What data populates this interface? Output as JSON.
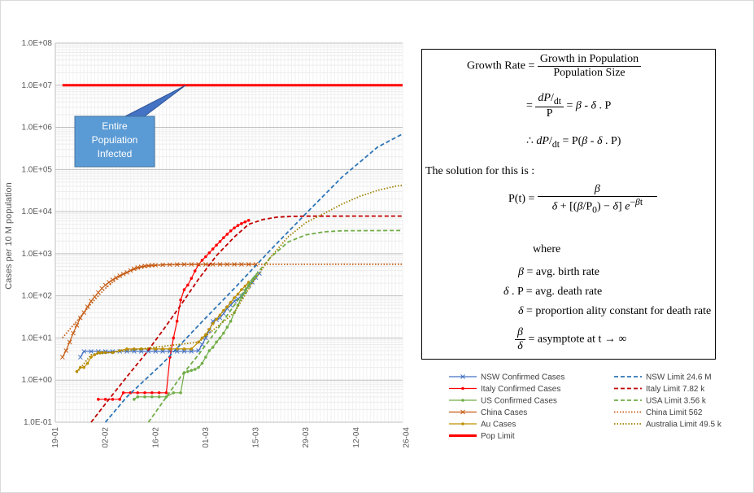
{
  "chart_data": {
    "type": "line",
    "ylabel": "Cases per 10 M population",
    "yscale": "log",
    "ylim": [
      0.1,
      100000000
    ],
    "ytick_labels": [
      "1.0E-01",
      "1.0E+00",
      "1.0E+01",
      "1.0E+02",
      "1.0E+03",
      "1.0E+04",
      "1.0E+05",
      "1.0E+06",
      "1.0E+07",
      "1.0E+08"
    ],
    "xlim_days": [
      0,
      97
    ],
    "xtick_labels": [
      "19-01",
      "02-02",
      "16-02",
      "01-03",
      "15-03",
      "29-03",
      "12-04",
      "26-04"
    ],
    "grid": true,
    "annotation": {
      "text_lines": [
        "Entire",
        "Population",
        "Infected"
      ]
    },
    "series": [
      {
        "name": "NSW Confirmed Cases",
        "color": "#4472c4",
        "style": "marker-x",
        "points": [
          [
            7,
            3.5
          ],
          [
            8,
            4.8
          ],
          [
            10,
            4.8
          ],
          [
            12,
            4.8
          ],
          [
            14,
            4.8
          ],
          [
            16,
            4.8
          ],
          [
            18,
            4.8
          ],
          [
            20,
            4.8
          ],
          [
            22,
            4.8
          ],
          [
            24,
            4.8
          ],
          [
            26,
            4.8
          ],
          [
            28,
            4.8
          ],
          [
            30,
            4.8
          ],
          [
            32,
            4.8
          ],
          [
            34,
            4.8
          ],
          [
            36,
            4.8
          ],
          [
            38,
            4.8
          ],
          [
            40,
            5
          ],
          [
            41,
            7
          ],
          [
            42,
            10
          ],
          [
            43,
            15
          ],
          [
            44,
            25
          ],
          [
            45,
            27
          ],
          [
            46,
            30
          ],
          [
            47,
            38
          ],
          [
            48,
            50
          ],
          [
            49,
            60
          ],
          [
            50,
            75
          ],
          [
            51,
            85
          ],
          [
            52,
            100
          ],
          [
            53,
            130
          ],
          [
            54,
            170
          ],
          [
            55,
            210
          ],
          [
            56,
            270
          ],
          [
            57,
            340
          ]
        ]
      },
      {
        "name": "Italy Confirmed Cases",
        "color": "#ff0000",
        "style": "marker-dot",
        "points": [
          [
            12,
            0.35
          ],
          [
            14,
            0.35
          ],
          [
            16,
            0.35
          ],
          [
            18,
            0.35
          ],
          [
            19,
            0.5
          ],
          [
            21,
            0.5
          ],
          [
            23,
            0.5
          ],
          [
            25,
            0.5
          ],
          [
            27,
            0.5
          ],
          [
            29,
            0.5
          ],
          [
            31,
            0.5
          ],
          [
            32,
            3.5
          ],
          [
            33,
            10
          ],
          [
            34,
            25
          ],
          [
            35,
            80
          ],
          [
            36,
            140
          ],
          [
            37,
            180
          ],
          [
            38,
            260
          ],
          [
            39,
            390
          ],
          [
            40,
            550
          ],
          [
            41,
            700
          ],
          [
            42,
            850
          ],
          [
            43,
            1050
          ],
          [
            44,
            1300
          ],
          [
            45,
            1600
          ],
          [
            46,
            1950
          ],
          [
            47,
            2400
          ],
          [
            48,
            2900
          ],
          [
            49,
            3500
          ],
          [
            50,
            4100
          ],
          [
            51,
            4700
          ],
          [
            52,
            5200
          ],
          [
            53,
            5700
          ],
          [
            54,
            6200
          ]
        ]
      },
      {
        "name": "US Confirmed Cases",
        "color": "#70ad47",
        "style": "marker-dot",
        "points": [
          [
            22,
            0.35
          ],
          [
            23,
            0.4
          ],
          [
            25,
            0.4
          ],
          [
            27,
            0.4
          ],
          [
            29,
            0.4
          ],
          [
            31,
            0.4
          ],
          [
            33,
            0.5
          ],
          [
            35,
            0.5
          ],
          [
            36,
            1.5
          ],
          [
            37,
            1.6
          ],
          [
            38,
            1.7
          ],
          [
            39,
            1.8
          ],
          [
            40,
            2
          ],
          [
            41,
            2.5
          ],
          [
            42,
            3.5
          ],
          [
            43,
            5
          ],
          [
            44,
            6
          ],
          [
            45,
            8
          ],
          [
            46,
            10
          ],
          [
            47,
            13
          ],
          [
            48,
            18
          ],
          [
            49,
            25
          ],
          [
            50,
            40
          ],
          [
            51,
            60
          ],
          [
            52,
            90
          ],
          [
            53,
            120
          ],
          [
            54,
            170
          ],
          [
            55,
            230
          ],
          [
            56,
            290
          ]
        ]
      },
      {
        "name": "China Cases",
        "color": "#c55a11",
        "style": "marker-x",
        "points": [
          [
            2,
            3.5
          ],
          [
            3,
            5
          ],
          [
            4,
            8
          ],
          [
            5,
            13
          ],
          [
            6,
            20
          ],
          [
            7,
            30
          ],
          [
            8,
            40
          ],
          [
            9,
            55
          ],
          [
            10,
            75
          ],
          [
            11,
            95
          ],
          [
            12,
            120
          ],
          [
            13,
            150
          ],
          [
            14,
            180
          ],
          [
            15,
            210
          ],
          [
            16,
            240
          ],
          [
            17,
            270
          ],
          [
            18,
            300
          ],
          [
            19,
            330
          ],
          [
            20,
            360
          ],
          [
            21,
            400
          ],
          [
            22,
            440
          ],
          [
            23,
            470
          ],
          [
            24,
            490
          ],
          [
            25,
            510
          ],
          [
            26,
            520
          ],
          [
            27,
            530
          ],
          [
            28,
            535
          ],
          [
            30,
            545
          ],
          [
            32,
            550
          ],
          [
            34,
            555
          ],
          [
            36,
            558
          ],
          [
            38,
            560
          ],
          [
            40,
            560
          ],
          [
            42,
            560
          ],
          [
            44,
            560
          ],
          [
            46,
            560
          ],
          [
            48,
            560
          ],
          [
            50,
            560
          ],
          [
            52,
            560
          ],
          [
            54,
            560
          ],
          [
            56,
            560
          ]
        ]
      },
      {
        "name": "Au Cases",
        "color": "#bf9000",
        "style": "marker-dot",
        "points": [
          [
            6,
            1.6
          ],
          [
            7,
            2
          ],
          [
            8,
            2
          ],
          [
            9,
            2.5
          ],
          [
            10,
            3.5
          ],
          [
            11,
            4
          ],
          [
            12,
            4.5
          ],
          [
            13,
            4.5
          ],
          [
            14,
            4.5
          ],
          [
            16,
            4.5
          ],
          [
            18,
            5
          ],
          [
            20,
            5.5
          ],
          [
            22,
            5.5
          ],
          [
            24,
            5.5
          ],
          [
            26,
            5.5
          ],
          [
            28,
            5.5
          ],
          [
            30,
            5.5
          ],
          [
            32,
            5.5
          ],
          [
            34,
            5.5
          ],
          [
            36,
            5.5
          ],
          [
            38,
            5.5
          ],
          [
            40,
            8
          ],
          [
            41,
            10
          ],
          [
            42,
            12
          ],
          [
            43,
            16
          ],
          [
            44,
            22
          ],
          [
            45,
            28
          ],
          [
            46,
            35
          ],
          [
            47,
            45
          ],
          [
            48,
            55
          ],
          [
            49,
            70
          ],
          [
            50,
            90
          ],
          [
            51,
            110
          ],
          [
            52,
            140
          ],
          [
            53,
            170
          ],
          [
            54,
            210
          ]
        ]
      },
      {
        "name": "Pop Limit",
        "color": "#ff0000",
        "style": "thick",
        "points": [
          [
            2,
            10000000
          ],
          [
            97,
            10000000
          ]
        ]
      },
      {
        "name": "NSW Limit 24.6 M",
        "color": "#2e75b6",
        "style": "dash",
        "points": [
          [
            14,
            0.1
          ],
          [
            20,
            0.4
          ],
          [
            30,
            2.5
          ],
          [
            40,
            20
          ],
          [
            50,
            150
          ],
          [
            60,
            1200
          ],
          [
            70,
            9000
          ],
          [
            80,
            65000
          ],
          [
            90,
            340000
          ],
          [
            97,
            700000
          ]
        ]
      },
      {
        "name": "Italy Limit 7.82 k",
        "color": "#c00000",
        "style": "dash",
        "points": [
          [
            10,
            0.1
          ],
          [
            15,
            0.35
          ],
          [
            20,
            1.2
          ],
          [
            25,
            4
          ],
          [
            30,
            15
          ],
          [
            35,
            60
          ],
          [
            40,
            250
          ],
          [
            45,
            900
          ],
          [
            50,
            2500
          ],
          [
            54,
            5000
          ],
          [
            58,
            6500
          ],
          [
            62,
            7400
          ],
          [
            66,
            7700
          ],
          [
            70,
            7800
          ],
          [
            97,
            7820
          ]
        ]
      },
      {
        "name": "USA Limit 3.56 k",
        "color": "#70ad47",
        "style": "dash",
        "points": [
          [
            26,
            0.1
          ],
          [
            30,
            0.3
          ],
          [
            35,
            1.2
          ],
          [
            40,
            4
          ],
          [
            45,
            15
          ],
          [
            50,
            60
          ],
          [
            55,
            250
          ],
          [
            60,
            800
          ],
          [
            65,
            1900
          ],
          [
            70,
            2800
          ],
          [
            75,
            3300
          ],
          [
            80,
            3500
          ],
          [
            97,
            3560
          ]
        ]
      },
      {
        "name": "China Limit 562",
        "color": "#c55a11",
        "style": "dot",
        "points": [
          [
            2,
            10
          ],
          [
            4,
            16
          ],
          [
            6,
            25
          ],
          [
            8,
            40
          ],
          [
            10,
            65
          ],
          [
            12,
            100
          ],
          [
            14,
            150
          ],
          [
            16,
            210
          ],
          [
            18,
            290
          ],
          [
            20,
            360
          ],
          [
            22,
            420
          ],
          [
            24,
            470
          ],
          [
            26,
            510
          ],
          [
            30,
            545
          ],
          [
            35,
            558
          ],
          [
            40,
            561
          ],
          [
            97,
            562
          ]
        ]
      },
      {
        "name": "Australia Limit 49.5 k",
        "color": "#a08000",
        "style": "dot",
        "points": [
          [
            6,
            1.5
          ],
          [
            10,
            4
          ],
          [
            20,
            5
          ],
          [
            40,
            8
          ],
          [
            50,
            40
          ],
          [
            55,
            200
          ],
          [
            60,
            800
          ],
          [
            65,
            2500
          ],
          [
            70,
            5500
          ],
          [
            75,
            9000
          ],
          [
            80,
            15000
          ],
          [
            85,
            23000
          ],
          [
            90,
            32000
          ],
          [
            95,
            40000
          ],
          [
            97,
            42000
          ]
        ]
      }
    ]
  },
  "equation": {
    "growth_rate": "Growth Rate",
    "growth_num": "Growth  in Population",
    "growth_den": "Population  Size",
    "solution": "The  solution for this is :",
    "where": "where",
    "beta_def": "= avg. birth rate",
    "delta_p_def": "= avg. death rate",
    "delta_def": "= proportion ality constant  for death  rate",
    "asym_def": "= asymptote  at t"
  }
}
